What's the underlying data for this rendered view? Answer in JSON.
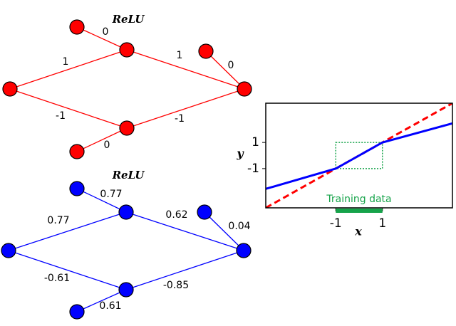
{
  "networks": [
    {
      "title": "ReLU",
      "color": "#ff0000",
      "weights": [
        0,
        1,
        1,
        0,
        -1,
        -1,
        0
      ]
    },
    {
      "title": "ReLU",
      "color": "#0000ff",
      "weights": [
        0.77,
        0.77,
        0.62,
        0.04,
        -0.61,
        -0.85,
        0.61
      ]
    }
  ],
  "chart_data": {
    "type": "line",
    "xlabel": "x",
    "ylabel": "y",
    "xlim": [
      -4,
      4
    ],
    "ylim": [
      -4,
      4
    ],
    "xticks": [
      -1,
      1
    ],
    "yticks": [
      -1,
      1
    ],
    "training_label": "Training data",
    "training_range": [
      -1,
      1
    ],
    "training_color": "#16a34a",
    "series": [
      {
        "color": "#ff0000",
        "dashed": true,
        "x": [
          -4,
          4
        ],
        "values": [
          -4,
          4
        ]
      },
      {
        "color": "#0000ff",
        "dashed": false,
        "x": [
          -4,
          -1,
          1,
          4
        ],
        "values": [
          -2.55,
          -1,
          1,
          2.46
        ]
      }
    ]
  }
}
